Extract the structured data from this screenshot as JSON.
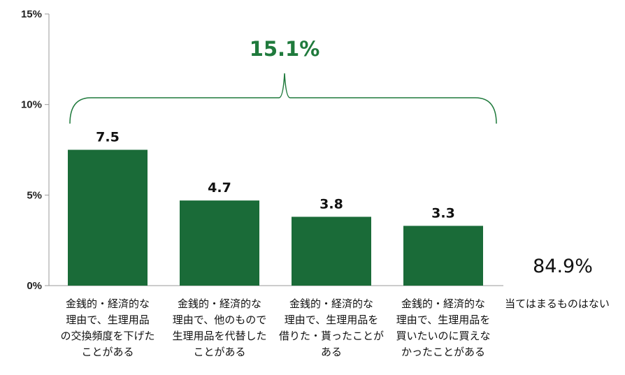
{
  "chart_data": {
    "type": "bar",
    "categories": [
      "金銭的・経済的な\n理由で、生理用品\nの交換頻度を下げた\nことがある",
      "金銭的・経済的な\n理由で、他のもので\n生理用品を代替した\nことがある",
      "金銭的・経済的な\n理由で、生理用品を\n借りた・貰ったことが\nある",
      "金銭的・経済的な\n理由で、生理用品を\n買いたいのに買えな\nかったことがある"
    ],
    "values": [
      7.5,
      4.7,
      3.8,
      3.3
    ],
    "value_labels": [
      "7.5",
      "4.7",
      "3.8",
      "3.3"
    ],
    "ylim": [
      0,
      15
    ],
    "yticks": [
      0,
      5,
      10,
      15
    ],
    "ytick_labels": [
      "0%",
      "5%",
      "10%",
      "15%"
    ],
    "grid": false,
    "bar_color": "#1a6b38",
    "bracket_total": "15.1%",
    "bracket_color": "#1f7a3c",
    "other": {
      "label": "当てはまるものはない",
      "value": 84.9,
      "value_label": "84.9%"
    }
  }
}
